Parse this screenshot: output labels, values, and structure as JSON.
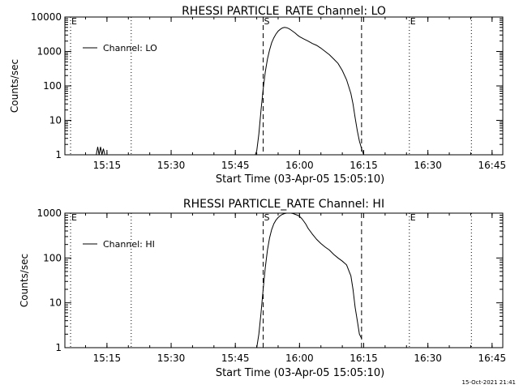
{
  "timestamp": "15-Oct-2021 21:41",
  "chart_data": [
    {
      "type": "line",
      "title": "RHESSI PARTICLE_RATE Channel: LO",
      "xlabel": "Start Time (03-Apr-05 15:05:10)",
      "ylabel": "Counts/sec",
      "x_ticks": [
        "15:15",
        "15:30",
        "15:45",
        "16:00",
        "16:15",
        "16:30",
        "16:45"
      ],
      "y_ticks": [
        "1",
        "10",
        "100",
        "1000",
        "10000"
      ],
      "y_scale": "log",
      "xlim": [
        "15:05:10",
        "16:47:30"
      ],
      "ylim": [
        1,
        10000
      ],
      "grid": false,
      "legend": "top-left",
      "markers": [
        {
          "time": "15:06:30",
          "style": "dotted",
          "label": "E"
        },
        {
          "time": "15:20:40",
          "style": "dotted",
          "label": ""
        },
        {
          "time": "15:51:30",
          "style": "dashed",
          "label": "S"
        },
        {
          "time": "16:14:30",
          "style": "dashed",
          "label": ""
        },
        {
          "time": "16:25:40",
          "style": "dotted",
          "label": "E"
        },
        {
          "time": "16:40:10",
          "style": "dotted",
          "label": ""
        }
      ],
      "series": [
        {
          "name": "Channel: LO",
          "x": [
            "15:12:30",
            "15:12:50",
            "15:13:10",
            "15:13:30",
            "15:13:50",
            "15:14:10",
            "15:14:30",
            "15:49:40",
            "15:50:00",
            "15:50:30",
            "15:51:00",
            "15:51:30",
            "15:52:00",
            "15:52:30",
            "15:53:00",
            "15:53:30",
            "15:54:00",
            "15:54:30",
            "15:55:00",
            "15:55:30",
            "15:56:00",
            "15:56:30",
            "15:57:00",
            "15:57:30",
            "15:58:00",
            "15:58:30",
            "15:59:00",
            "15:59:30",
            "16:00:00",
            "16:01:00",
            "16:02:00",
            "16:03:00",
            "16:04:00",
            "16:05:00",
            "16:06:00",
            "16:07:00",
            "16:08:00",
            "16:09:00",
            "16:10:00",
            "16:11:00",
            "16:12:00",
            "16:12:30",
            "16:13:00",
            "16:13:30",
            "16:14:00",
            "16:14:30",
            "16:15:00",
            "16:15:30"
          ],
          "values": [
            1,
            1.7,
            1,
            1.7,
            1,
            1.5,
            1,
            1,
            1.3,
            4,
            20,
            80,
            250,
            600,
            1100,
            1800,
            2500,
            3200,
            3900,
            4400,
            4800,
            5000,
            4900,
            4600,
            4200,
            3800,
            3400,
            3000,
            2700,
            2300,
            2000,
            1700,
            1500,
            1250,
            1000,
            800,
            600,
            450,
            280,
            150,
            60,
            30,
            12,
            5,
            2.5,
            1.5,
            1,
            1
          ]
        }
      ]
    },
    {
      "type": "line",
      "title": "RHESSI PARTICLE_RATE Channel: HI",
      "xlabel": "Start Time (03-Apr-05 15:05:10)",
      "ylabel": "Counts/sec",
      "x_ticks": [
        "15:15",
        "15:30",
        "15:45",
        "16:00",
        "16:15",
        "16:30",
        "16:45"
      ],
      "y_ticks": [
        "1",
        "10",
        "100",
        "1000"
      ],
      "y_scale": "log",
      "xlim": [
        "15:05:10",
        "16:47:30"
      ],
      "ylim": [
        1,
        1000
      ],
      "grid": false,
      "legend": "top-left",
      "markers": [
        {
          "time": "15:06:30",
          "style": "dotted",
          "label": "E"
        },
        {
          "time": "15:20:40",
          "style": "dotted",
          "label": ""
        },
        {
          "time": "15:51:30",
          "style": "dashed",
          "label": "S"
        },
        {
          "time": "16:14:30",
          "style": "dashed",
          "label": ""
        },
        {
          "time": "16:25:40",
          "style": "dotted",
          "label": "E"
        },
        {
          "time": "16:40:10",
          "style": "dotted",
          "label": ""
        }
      ],
      "series": [
        {
          "name": "Channel: HI",
          "x": [
            "15:50:00",
            "15:50:30",
            "15:51:00",
            "15:51:30",
            "15:52:00",
            "15:52:30",
            "15:53:00",
            "15:53:30",
            "15:54:00",
            "15:54:30",
            "15:55:00",
            "15:55:30",
            "15:56:00",
            "15:56:30",
            "15:57:00",
            "15:57:30",
            "15:58:00",
            "15:58:30",
            "15:59:00",
            "15:59:30",
            "16:00:00",
            "16:00:30",
            "16:01:00",
            "16:01:30",
            "16:02:00",
            "16:03:00",
            "16:04:00",
            "16:05:00",
            "16:06:00",
            "16:07:00",
            "16:08:00",
            "16:09:00",
            "16:10:00",
            "16:11:00",
            "16:12:00",
            "16:12:30",
            "16:13:00",
            "16:13:30",
            "16:14:00",
            "16:14:30"
          ],
          "values": [
            1,
            2,
            6,
            20,
            60,
            150,
            280,
            430,
            580,
            700,
            800,
            880,
            940,
            980,
            1000,
            1000,
            1000,
            980,
            940,
            900,
            850,
            760,
            660,
            560,
            460,
            340,
            260,
            210,
            175,
            150,
            120,
            100,
            85,
            70,
            40,
            20,
            8,
            4,
            2,
            1.6
          ]
        }
      ]
    }
  ]
}
